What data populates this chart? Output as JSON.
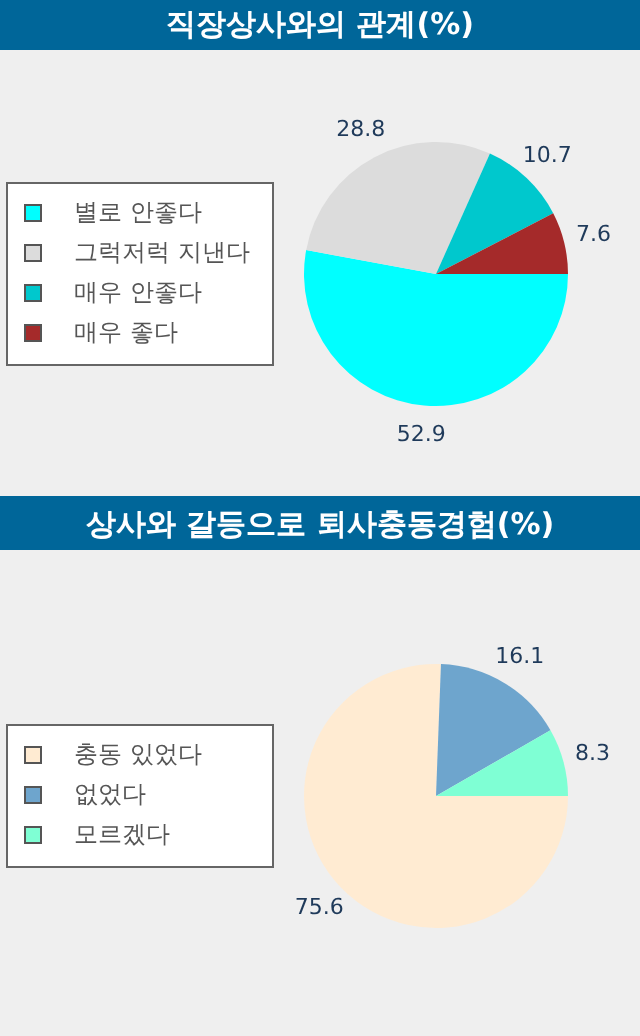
{
  "chart_data": [
    {
      "type": "pie",
      "title": "직장상사와의 관계(%)",
      "categories": [
        "별로 안좋다",
        "그럭저럭 지낸다",
        "매우 안좋다",
        "매우 좋다"
      ],
      "values": [
        52.9,
        28.8,
        10.7,
        7.6
      ],
      "colors": [
        "#00ffff",
        "#dcdcdc",
        "#00c8cd",
        "#a52a2a"
      ],
      "data_labels": true,
      "legend": "left"
    },
    {
      "type": "pie",
      "title": "상사와 갈등으로 퇴사충동경험(%)",
      "categories": [
        "충동 있었다",
        "없었다",
        "모르겠다"
      ],
      "values": [
        75.6,
        16.1,
        8.3
      ],
      "colors": [
        "#ffebd2",
        "#6ea5cd",
        "#7fffd4"
      ],
      "data_labels": true,
      "legend": "left"
    }
  ]
}
